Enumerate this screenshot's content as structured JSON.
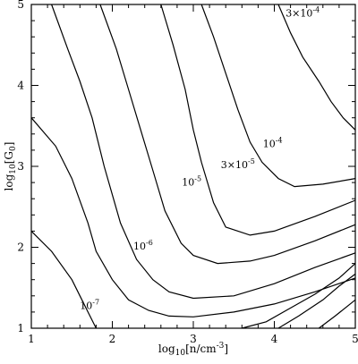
{
  "chart_data": {
    "type": "line",
    "title": "",
    "xlabel": "log10[n/cm-3]",
    "ylabel": "log10[G0]",
    "xlabel_parts": {
      "pre": "log",
      "sub": "10",
      "mid": "[n/cm",
      "sup": "-3",
      "post": "]"
    },
    "ylabel_parts": {
      "pre": "log",
      "sub": "10",
      "mid": "[G",
      "sub2": "0",
      "post": "]"
    },
    "xlim": [
      1,
      5
    ],
    "ylim": [
      1,
      5
    ],
    "xticks": [
      1,
      2,
      3,
      4,
      5
    ],
    "yticks": [
      1,
      2,
      3,
      4,
      5
    ],
    "xtick_labels": [
      "1",
      "2",
      "3",
      "4",
      "5"
    ],
    "ytick_labels": [
      "1",
      "2",
      "3",
      "4",
      "5"
    ],
    "grid": false,
    "legend": "none",
    "series": [
      {
        "label_mantissa": "",
        "label_exp": "-7",
        "label_at": [
          1.72,
          1.24
        ],
        "points": [
          [
            1.0,
            2.2
          ],
          [
            1.25,
            1.95
          ],
          [
            1.5,
            1.6
          ],
          [
            1.6,
            1.4
          ],
          [
            1.7,
            1.2
          ],
          [
            1.8,
            1.0
          ]
        ]
      },
      {
        "label_mantissa": "",
        "label_exp": "",
        "label_at": null,
        "points": [
          [
            1.0,
            3.6
          ],
          [
            1.3,
            3.25
          ],
          [
            1.5,
            2.85
          ],
          [
            1.7,
            2.3
          ],
          [
            1.8,
            1.95
          ],
          [
            2.0,
            1.6
          ],
          [
            2.2,
            1.35
          ],
          [
            2.45,
            1.22
          ],
          [
            2.7,
            1.15
          ],
          [
            3.0,
            1.14
          ],
          [
            3.5,
            1.2
          ],
          [
            4.0,
            1.3
          ],
          [
            4.5,
            1.45
          ],
          [
            5.0,
            1.62
          ]
        ]
      },
      {
        "label_mantissa": "",
        "label_exp": "-6",
        "label_at": [
          2.38,
          1.97
        ],
        "points": [
          [
            1.25,
            5.0
          ],
          [
            1.45,
            4.45
          ],
          [
            1.6,
            4.05
          ],
          [
            1.75,
            3.6
          ],
          [
            1.9,
            3.0
          ],
          [
            2.1,
            2.3
          ],
          [
            2.3,
            1.85
          ],
          [
            2.5,
            1.6
          ],
          [
            2.7,
            1.45
          ],
          [
            3.0,
            1.37
          ],
          [
            3.5,
            1.4
          ],
          [
            4.0,
            1.55
          ],
          [
            4.5,
            1.75
          ],
          [
            5.0,
            1.93
          ]
        ]
      },
      {
        "label_mantissa": "",
        "label_exp": "-5",
        "label_at": [
          2.98,
          2.76
        ],
        "points": [
          [
            1.85,
            5.0
          ],
          [
            2.05,
            4.45
          ],
          [
            2.2,
            3.95
          ],
          [
            2.35,
            3.45
          ],
          [
            2.5,
            2.95
          ],
          [
            2.65,
            2.45
          ],
          [
            2.85,
            2.05
          ],
          [
            3.0,
            1.9
          ],
          [
            3.3,
            1.8
          ],
          [
            3.7,
            1.83
          ],
          [
            4.0,
            1.9
          ],
          [
            4.5,
            2.08
          ],
          [
            5.0,
            2.28
          ]
        ]
      },
      {
        "label_mantissa": "3×",
        "label_exp": "-5",
        "label_at": [
          3.55,
          2.98
        ],
        "points": [
          [
            2.6,
            5.0
          ],
          [
            2.75,
            4.5
          ],
          [
            2.9,
            3.95
          ],
          [
            3.0,
            3.45
          ],
          [
            3.1,
            3.05
          ],
          [
            3.25,
            2.55
          ],
          [
            3.4,
            2.25
          ],
          [
            3.7,
            2.15
          ],
          [
            4.0,
            2.2
          ],
          [
            4.5,
            2.38
          ],
          [
            5.0,
            2.58
          ]
        ]
      },
      {
        "label_mantissa": "",
        "label_exp": "-4",
        "label_at": [
          3.98,
          3.24
        ],
        "points": [
          [
            3.1,
            5.0
          ],
          [
            3.25,
            4.6
          ],
          [
            3.4,
            4.15
          ],
          [
            3.55,
            3.7
          ],
          [
            3.7,
            3.3
          ],
          [
            3.85,
            3.05
          ],
          [
            4.05,
            2.85
          ],
          [
            4.25,
            2.75
          ],
          [
            4.6,
            2.78
          ],
          [
            5.0,
            2.85
          ]
        ]
      },
      {
        "label_mantissa": "3×",
        "label_exp": "-4",
        "label_at": [
          4.35,
          4.85
        ],
        "points": [
          [
            4.05,
            5.0
          ],
          [
            4.2,
            4.65
          ],
          [
            4.35,
            4.35
          ],
          [
            4.55,
            4.05
          ],
          [
            4.7,
            3.8
          ],
          [
            4.85,
            3.6
          ],
          [
            5.0,
            3.45
          ]
        ]
      },
      {
        "label_mantissa": "",
        "label_exp": "",
        "label_at": null,
        "points": [
          [
            3.6,
            1.0
          ],
          [
            3.9,
            1.08
          ],
          [
            4.2,
            1.25
          ],
          [
            4.5,
            1.42
          ],
          [
            4.8,
            1.62
          ],
          [
            5.0,
            1.8
          ]
        ]
      },
      {
        "label_mantissa": "",
        "label_exp": "",
        "label_at": null,
        "points": [
          [
            4.05,
            1.0
          ],
          [
            4.3,
            1.15
          ],
          [
            4.6,
            1.35
          ],
          [
            4.8,
            1.52
          ],
          [
            5.0,
            1.67
          ]
        ]
      },
      {
        "label_mantissa": "",
        "label_exp": "",
        "label_at": null,
        "points": [
          [
            4.55,
            1.0
          ],
          [
            4.75,
            1.15
          ],
          [
            5.0,
            1.35
          ]
        ]
      }
    ]
  }
}
